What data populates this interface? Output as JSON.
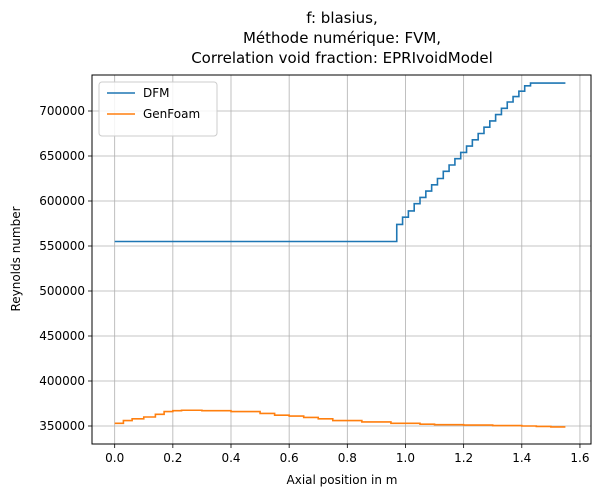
{
  "chart_data": {
    "type": "line",
    "title_lines": [
      "f: blasius,",
      "Méthode numérique: FVM,",
      "Correlation void fraction: EPRIvoidModel"
    ],
    "xlabel": "Axial position in m",
    "ylabel": "Reynolds number",
    "xlim": [
      -0.078,
      1.638
    ],
    "ylim": [
      330000,
      740000
    ],
    "xticks": [
      0.0,
      0.2,
      0.4,
      0.6,
      0.8,
      1.0,
      1.2,
      1.4,
      1.6
    ],
    "xtick_labels": [
      "0.0",
      "0.2",
      "0.4",
      "0.6",
      "0.8",
      "1.0",
      "1.2",
      "1.4",
      "1.6"
    ],
    "yticks": [
      350000,
      400000,
      450000,
      500000,
      550000,
      600000,
      650000,
      700000
    ],
    "ytick_labels": [
      "350000",
      "400000",
      "450000",
      "500000",
      "550000",
      "600000",
      "650000",
      "700000"
    ],
    "grid": true,
    "legend_position": "top-left",
    "step_mode": "post",
    "series": [
      {
        "name": "DFM",
        "color": "#1f77b4",
        "x": [
          0.0,
          0.97,
          0.99,
          1.01,
          1.03,
          1.05,
          1.07,
          1.09,
          1.11,
          1.13,
          1.15,
          1.17,
          1.19,
          1.21,
          1.23,
          1.25,
          1.27,
          1.29,
          1.31,
          1.33,
          1.35,
          1.37,
          1.39,
          1.41,
          1.43,
          1.45,
          1.47,
          1.49,
          1.51,
          1.53,
          1.55
        ],
        "y": [
          555000,
          574000,
          582000,
          589000,
          597000,
          604000,
          611000,
          618000,
          625000,
          633000,
          640000,
          647000,
          654000,
          661000,
          668000,
          675000,
          682000,
          689000,
          696000,
          703000,
          710000,
          716000,
          722000,
          728000,
          731000,
          731000,
          731000,
          731000,
          731000,
          731000,
          731000
        ]
      },
      {
        "name": "GenFoam",
        "color": "#ff7f0e",
        "x": [
          0.0,
          0.03,
          0.06,
          0.1,
          0.14,
          0.17,
          0.2,
          0.23,
          0.3,
          0.4,
          0.5,
          0.55,
          0.6,
          0.65,
          0.7,
          0.75,
          0.85,
          0.95,
          1.05,
          1.1,
          1.2,
          1.3,
          1.4,
          1.45,
          1.5,
          1.55
        ],
        "y": [
          353000,
          356000,
          358000,
          360000,
          363000,
          366000,
          367000,
          367500,
          367000,
          366000,
          364000,
          362000,
          361000,
          359500,
          358000,
          356000,
          354500,
          353000,
          352000,
          351500,
          351000,
          350500,
          350000,
          349500,
          349000,
          349000
        ]
      }
    ]
  }
}
